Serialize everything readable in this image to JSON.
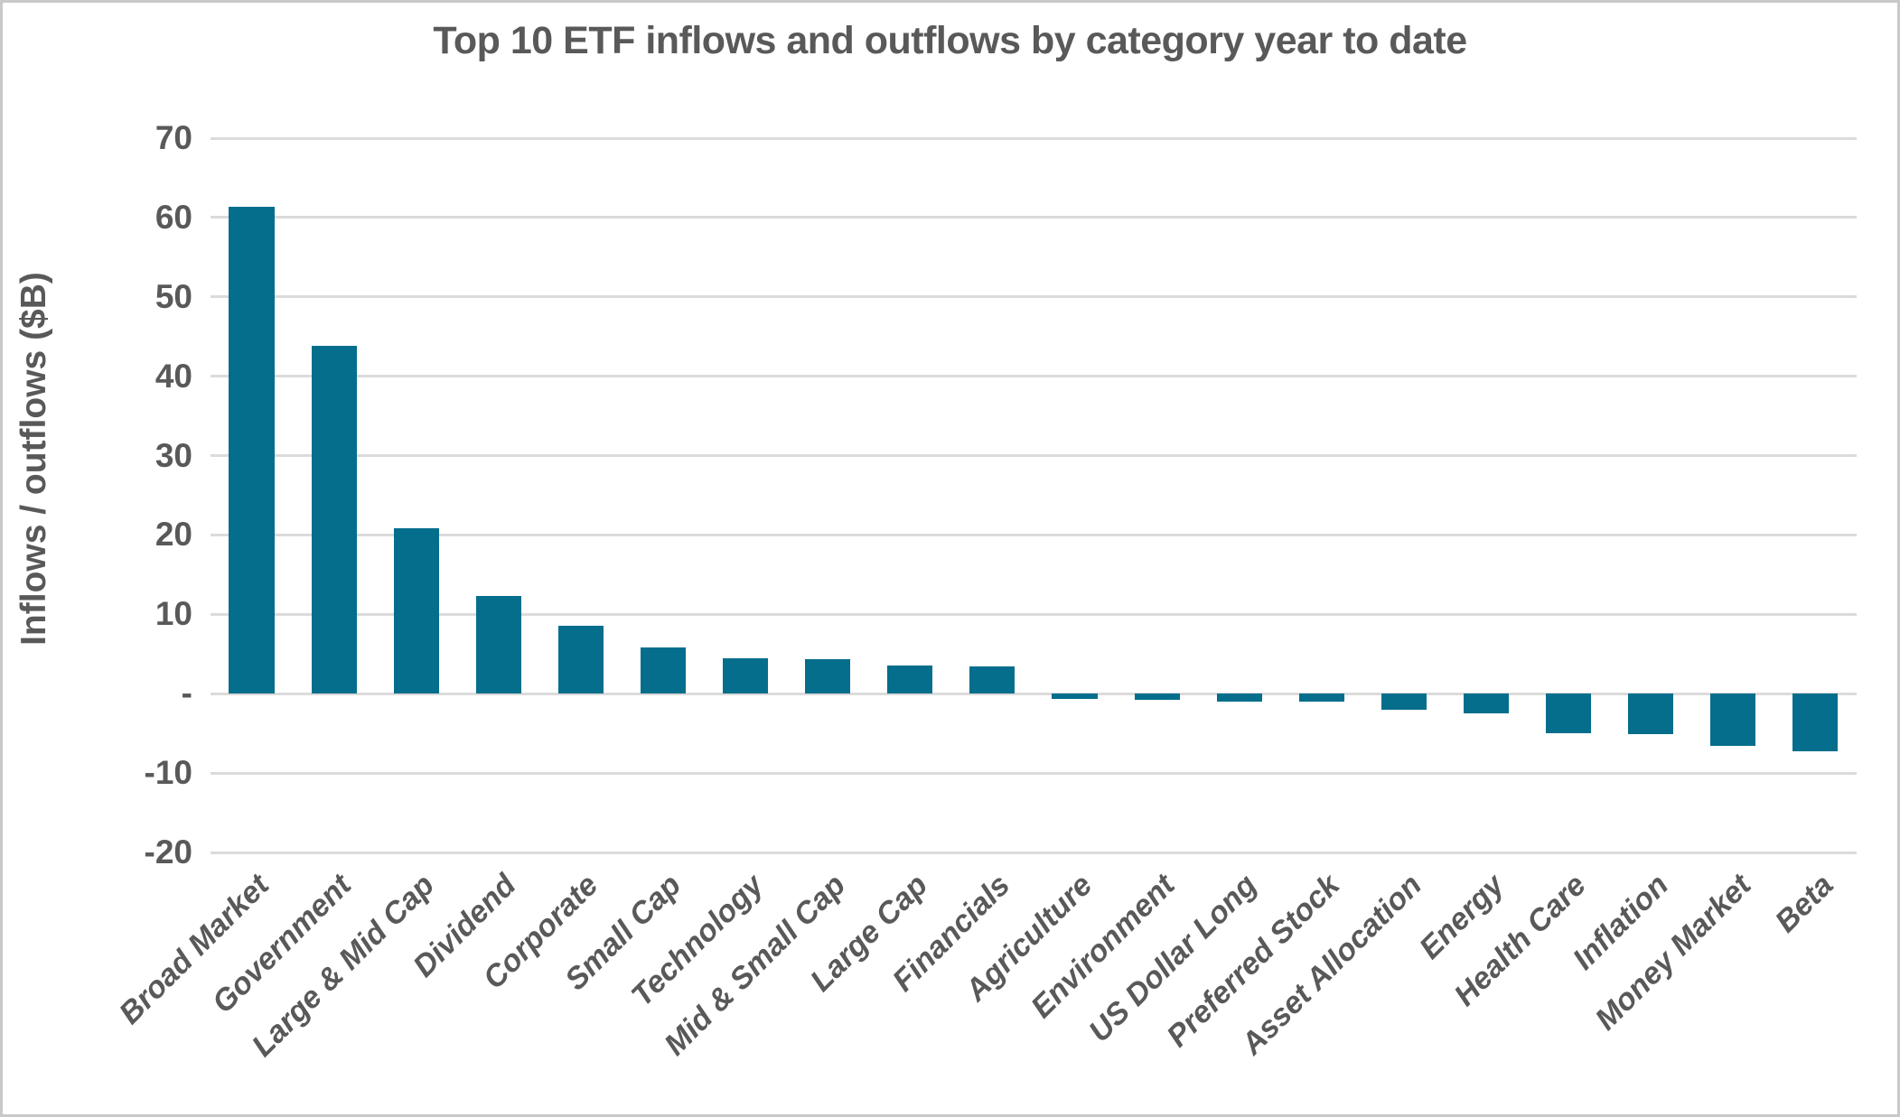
{
  "colors": {
    "bar": "#046E8C",
    "grid": "#DBDBDB",
    "text": "#595959",
    "frame": "#C9C9C9",
    "background": "#FFFFFF"
  },
  "chart_data": {
    "type": "bar",
    "title": "Top 10 ETF inflows and outflows by category year to date",
    "xlabel": "",
    "ylabel": "Inflows / outflows ($B)",
    "ylim": [
      -20,
      70
    ],
    "grid": true,
    "legend": false,
    "bar_color": "#046E8C",
    "yticks": [
      {
        "value": 70,
        "label": "70"
      },
      {
        "value": 60,
        "label": "60"
      },
      {
        "value": 50,
        "label": "50"
      },
      {
        "value": 40,
        "label": "40"
      },
      {
        "value": 30,
        "label": "30"
      },
      {
        "value": 20,
        "label": "20"
      },
      {
        "value": 10,
        "label": "10"
      },
      {
        "value": 0,
        "label": "-"
      },
      {
        "value": -10,
        "label": "-10"
      },
      {
        "value": -20,
        "label": "-20"
      }
    ],
    "categories": [
      "Broad Market",
      "Government",
      "Large & Mid Cap",
      "Dividend",
      "Corporate",
      "Small Cap",
      "Technology",
      "Mid & Small Cap",
      "Large Cap",
      "Financials",
      "Agriculture",
      "Environment",
      "US Dollar Long",
      "Preferred Stock",
      "Asset Allocation",
      "Energy",
      "Health Care",
      "Inflation",
      "Money Market",
      "Beta"
    ],
    "values": [
      61.4,
      43.8,
      20.8,
      12.3,
      8.6,
      5.8,
      4.5,
      4.4,
      3.5,
      3.4,
      -0.7,
      -0.8,
      -1.0,
      -1.0,
      -2.0,
      -2.5,
      -5.0,
      -5.1,
      -6.6,
      -7.3
    ]
  }
}
